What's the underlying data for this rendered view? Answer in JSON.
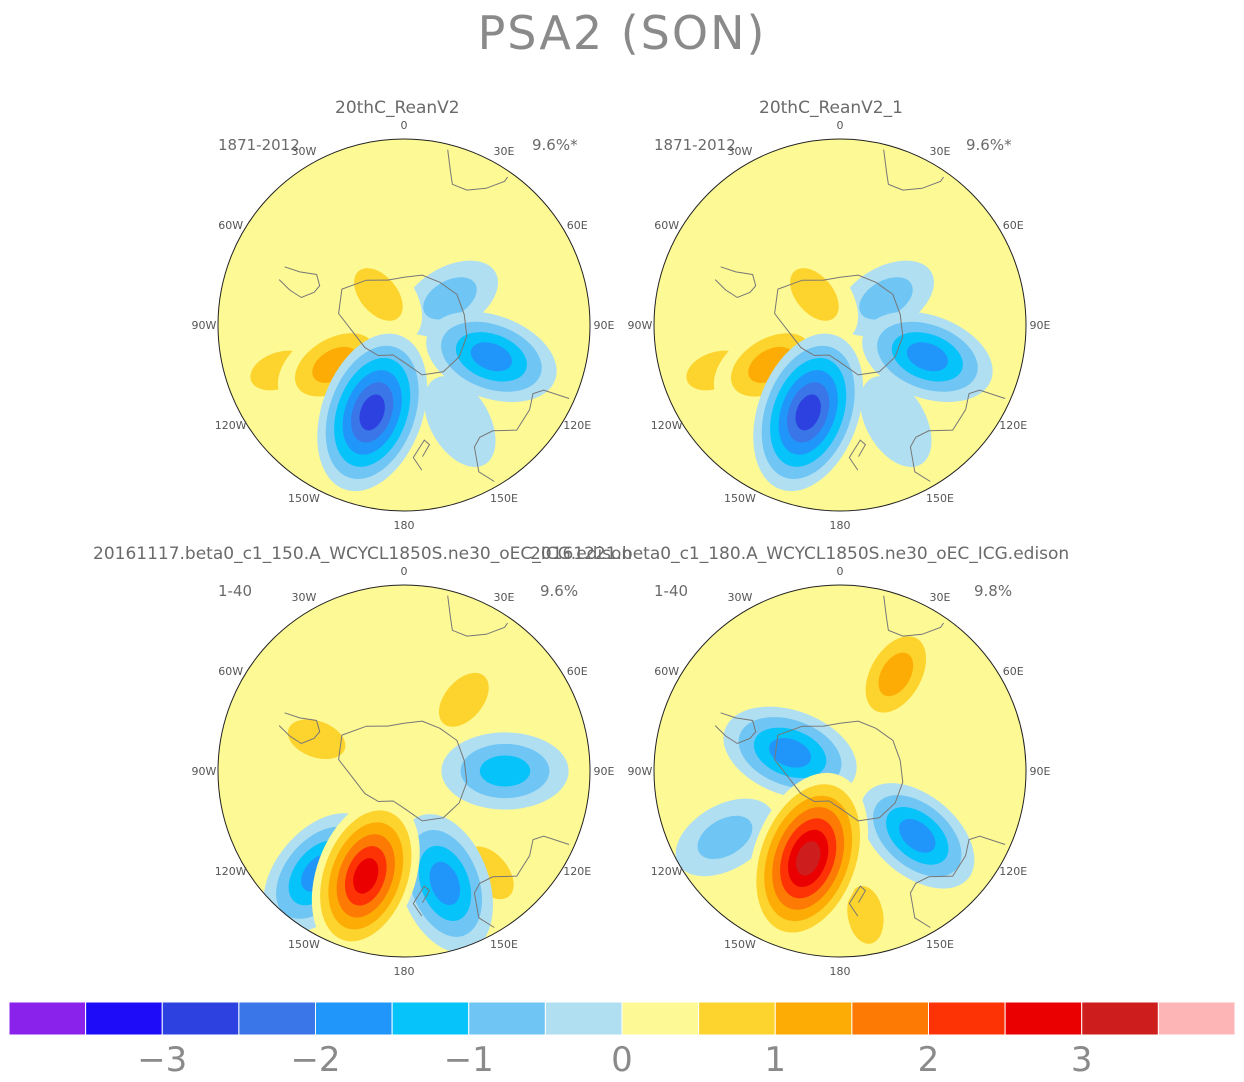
{
  "figure": {
    "title": "PSA2 (SON)"
  },
  "chart_data": [
    {
      "type": "heatmap",
      "projection": "south polar stereographic",
      "title": "20thC_ReanV2",
      "period": "1871-2012",
      "variance": "9.6%*",
      "lon_labels": [
        "0",
        "30E",
        "60E",
        "90E",
        "120E",
        "150E",
        "180",
        "150W",
        "120W",
        "90W",
        "60W",
        "30W"
      ],
      "anomalies": [
        {
          "lon": 240,
          "lat": -60,
          "value": 1.3
        },
        {
          "lon": 200,
          "lat": -55,
          "value": -2.7
        },
        {
          "lon": 110,
          "lat": -55,
          "value": -1.7
        },
        {
          "lon": 60,
          "lat": -70,
          "value": -0.6
        },
        {
          "lon": 320,
          "lat": -75,
          "value": 0.8
        },
        {
          "lon": 250,
          "lat": -40,
          "value": 0.7
        },
        {
          "lon": 150,
          "lat": -48,
          "value": -0.4
        }
      ]
    },
    {
      "type": "heatmap",
      "projection": "south polar stereographic",
      "title": "20thC_ReanV2_1",
      "period": "1871-2012",
      "variance": "9.6%*",
      "lon_labels": [
        "0",
        "30E",
        "60E",
        "90E",
        "120E",
        "150E",
        "180",
        "150W",
        "120W",
        "90W",
        "60W",
        "30W"
      ],
      "anomalies": [
        {
          "lon": 240,
          "lat": -60,
          "value": 1.3
        },
        {
          "lon": 200,
          "lat": -55,
          "value": -2.7
        },
        {
          "lon": 110,
          "lat": -55,
          "value": -1.7
        },
        {
          "lon": 60,
          "lat": -70,
          "value": -0.6
        },
        {
          "lon": 320,
          "lat": -75,
          "value": 0.8
        },
        {
          "lon": 250,
          "lat": -40,
          "value": 0.7
        },
        {
          "lon": 150,
          "lat": -48,
          "value": -0.4
        }
      ]
    },
    {
      "type": "heatmap",
      "projection": "south polar stereographic",
      "title": "20161117.beta0_c1_150.A_WCYCL1850S.ne30_oEC_ICG.edison",
      "period": "1-40",
      "variance": "9.6%",
      "lon_labels": [
        "0",
        "30E",
        "60E",
        "90E",
        "120E",
        "150E",
        "180",
        "150W",
        "120W",
        "90W",
        "60W",
        "30W"
      ],
      "anomalies": [
        {
          "lon": 200,
          "lat": -48,
          "value": 2.6
        },
        {
          "lon": 220,
          "lat": -40,
          "value": -1.8
        },
        {
          "lon": 160,
          "lat": -45,
          "value": -2.0
        },
        {
          "lon": 90,
          "lat": -52,
          "value": -1.4
        },
        {
          "lon": 40,
          "lat": -55,
          "value": 0.9
        },
        {
          "lon": 140,
          "lat": -40,
          "value": 0.8
        },
        {
          "lon": 290,
          "lat": -55,
          "value": 0.7
        }
      ]
    },
    {
      "type": "heatmap",
      "projection": "south polar stereographic",
      "title": "20161221.beta0_c1_180.A_WCYCL1850S.ne30_oEC_ICG.edison",
      "period": "1-40",
      "variance": "9.8%",
      "lon_labels": [
        "0",
        "30E",
        "60E",
        "90E",
        "120E",
        "150E",
        "180",
        "150W",
        "120W",
        "90W",
        "60W",
        "30W"
      ],
      "anomalies": [
        {
          "lon": 200,
          "lat": -55,
          "value": 3.2
        },
        {
          "lon": 30,
          "lat": -48,
          "value": 1.1
        },
        {
          "lon": 290,
          "lat": -70,
          "value": -1.8
        },
        {
          "lon": 130,
          "lat": -52,
          "value": -1.6
        },
        {
          "lon": 170,
          "lat": -35,
          "value": 0.6
        },
        {
          "lon": 240,
          "lat": -40,
          "value": -0.7
        }
      ]
    }
  ],
  "colorbar": {
    "colors": [
      "#8a22ec",
      "#1e0cf8",
      "#2c41e0",
      "#3a76e8",
      "#2196fa",
      "#06c3fa",
      "#6fc5f3",
      "#b1dff2",
      "#fdf995",
      "#fdd32d",
      "#fdac05",
      "#fd7a05",
      "#fd3305",
      "#ea0000",
      "#cd1d1d",
      "#fdb5b5"
    ],
    "tick_labels": [
      "−3",
      "−2",
      "−1",
      "0",
      "1",
      "2",
      "3"
    ],
    "tick_values": [
      -3,
      -2,
      -1,
      0,
      1,
      2,
      3
    ],
    "interval": 0.5
  }
}
